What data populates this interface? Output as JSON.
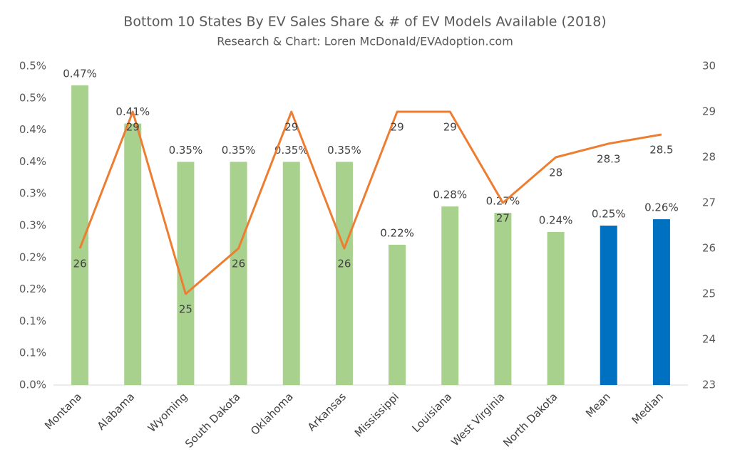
{
  "chart_data": {
    "type": "bar-line",
    "title": "Bottom 10 States By EV Sales Share & # of EV Models Available (2018)",
    "subtitle": "Research & Chart: Loren McDonald/EVAdoption.com",
    "categories": [
      "Montana",
      "Alabama",
      "Wyoming",
      "South Dakota",
      "Oklahoma",
      "Arkansas",
      "Mississippi",
      "Louisiana",
      "West Virginia",
      "North Dakota",
      "Mean",
      "Median"
    ],
    "series": [
      {
        "type": "bar",
        "axis": "y",
        "colors": [
          "#a9d18e",
          "#a9d18e",
          "#a9d18e",
          "#a9d18e",
          "#a9d18e",
          "#a9d18e",
          "#a9d18e",
          "#a9d18e",
          "#a9d18e",
          "#a9d18e",
          "#0070c0",
          "#0070c0"
        ],
        "values": [
          0.47,
          0.41,
          0.35,
          0.35,
          0.35,
          0.35,
          0.22,
          0.28,
          0.27,
          0.24,
          0.25,
          0.26
        ],
        "value_labels": [
          "0.47%",
          "0.41%",
          "0.35%",
          "0.35%",
          "0.35%",
          "0.35%",
          "0.22%",
          "0.28%",
          "0.27%",
          "0.24%",
          "0.25%",
          "0.26%"
        ]
      },
      {
        "type": "line",
        "axis": "y2",
        "color": "#ed7d31",
        "values": [
          26,
          29,
          25,
          26,
          29,
          26,
          29,
          29,
          27,
          28,
          28.3,
          28.5
        ]
      }
    ],
    "ylim": [
      0,
      0.5
    ],
    "yticks": [
      {
        "value": 0,
        "label": "0.0%"
      },
      {
        "value": 0.05,
        "label": "0.1%"
      },
      {
        "value": 0.1,
        "label": "0.1%"
      },
      {
        "value": 0.15,
        "label": "0.2%"
      },
      {
        "value": 0.2,
        "label": "0.2%"
      },
      {
        "value": 0.25,
        "label": "0.3%"
      },
      {
        "value": 0.3,
        "label": "0.3%"
      },
      {
        "value": 0.35,
        "label": "0.4%"
      },
      {
        "value": 0.4,
        "label": "0.4%"
      },
      {
        "value": 0.45,
        "label": "0.5%"
      },
      {
        "value": 0.5,
        "label": "0.5%"
      }
    ],
    "y2lim": [
      23,
      30
    ],
    "y2ticks": [
      23,
      24,
      25,
      26,
      27,
      28,
      29,
      30
    ]
  }
}
